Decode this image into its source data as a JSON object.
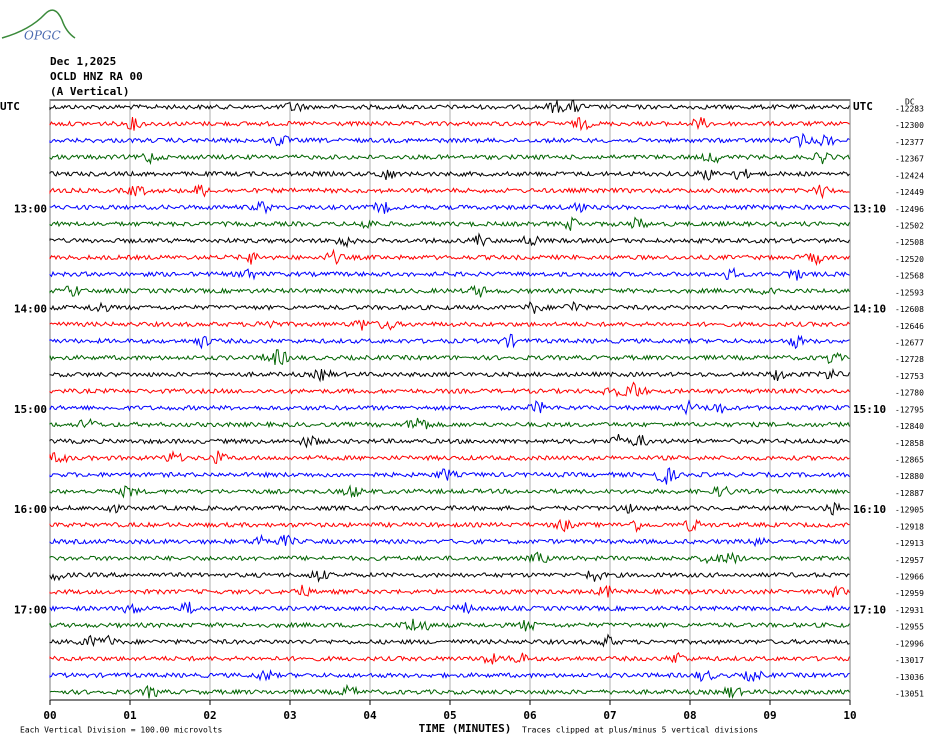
{
  "logo": "OPGC",
  "chart_data": {
    "type": "helicorder",
    "title_lines": [
      "Dec 1,2025",
      "OCLD HNZ RA 00",
      "(A Vertical)"
    ],
    "dc_label": "DC",
    "left_labels": [
      "UTC",
      null,
      null,
      null,
      null,
      null,
      "13:00",
      null,
      null,
      null,
      null,
      null,
      "14:00",
      null,
      null,
      null,
      null,
      null,
      "15:00",
      null,
      null,
      null,
      null,
      null,
      "16:00",
      null,
      null,
      null,
      null,
      null,
      "17:00",
      null,
      null,
      null,
      null,
      null
    ],
    "right_labels": [
      "UTC",
      null,
      null,
      null,
      null,
      null,
      "13:10",
      null,
      null,
      null,
      null,
      null,
      "14:10",
      null,
      null,
      null,
      null,
      null,
      "15:10",
      null,
      null,
      null,
      null,
      null,
      "16:10",
      null,
      null,
      null,
      null,
      null,
      "17:10",
      null,
      null,
      null,
      null,
      null
    ],
    "offsets": [
      -12283,
      -12300,
      -12377,
      -12367,
      -12424,
      -12449,
      -12496,
      -12502,
      -12508,
      -12520,
      -12568,
      -12593,
      -12608,
      -12646,
      -12677,
      -12728,
      -12753,
      -12780,
      -12795,
      -12840,
      -12858,
      -12865,
      -12880,
      -12887,
      -12905,
      -12918,
      -12913,
      -12957,
      -12966,
      -12959,
      -12931,
      -12955,
      -12996,
      -13017,
      -13036,
      -13051
    ],
    "colors": [
      "#000000",
      "#ff0000",
      "#0000ff",
      "#006400"
    ],
    "xlim": [
      0,
      10
    ],
    "xticks": [
      {
        "value": 0,
        "label": "00"
      },
      {
        "value": 1,
        "label": "01"
      },
      {
        "value": 2,
        "label": "02"
      },
      {
        "value": 3,
        "label": "03"
      },
      {
        "value": 4,
        "label": "04"
      },
      {
        "value": 5,
        "label": "05"
      },
      {
        "value": 6,
        "label": "06"
      },
      {
        "value": 7,
        "label": "07"
      },
      {
        "value": 8,
        "label": "08"
      },
      {
        "value": 9,
        "label": "09"
      },
      {
        "value": 10,
        "label": "10"
      }
    ],
    "x_label": "TIME (MINUTES)",
    "footer_left": "Each Vertical Division =  100.00 microvolts",
    "footer_right": "Traces clipped at plus/minus 5 vertical divisions",
    "grid": true
  }
}
